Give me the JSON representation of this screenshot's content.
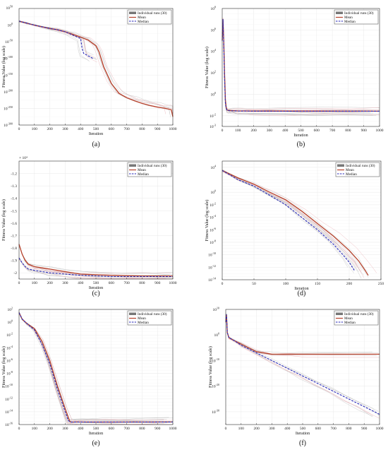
{
  "legend": {
    "runs": "Individual runs (30)",
    "mean": "Mean",
    "median": "Median"
  },
  "colors": {
    "mean": "#b5402a",
    "median": "#2a2ab8",
    "runs": "#b8b8b8",
    "run_accent": "#e8a6ad"
  },
  "chart_data": [
    {
      "id": "a",
      "type": "line",
      "caption": "(a)",
      "xlabel": "Iteration",
      "ylabel": "Fitness Value (log scale)",
      "xlim": [
        0,
        1000
      ],
      "xticks": [
        0,
        100,
        200,
        300,
        400,
        500,
        600,
        700,
        800,
        900,
        1000
      ],
      "yscale": "log",
      "ylim_exp": [
        -300,
        50
      ],
      "yticks_exp": [
        0,
        -50,
        -100,
        -150,
        -200,
        -250,
        -300
      ],
      "top_exp_label": "50",
      "series": [
        {
          "name": "Mean",
          "x": [
            0,
            50,
            100,
            150,
            200,
            250,
            300,
            350,
            400,
            450,
            500,
            520,
            550,
            600,
            650,
            700,
            750,
            800,
            850,
            900,
            950,
            990,
            1000
          ],
          "y_exp": [
            12,
            6,
            0,
            -5,
            -10,
            -14,
            -20,
            -28,
            -36,
            -45,
            -62,
            -80,
            -125,
            -175,
            -205,
            -218,
            -227,
            -235,
            -241,
            -246,
            -250,
            -254,
            -275
          ]
        },
        {
          "name": "Median",
          "x": [
            0,
            50,
            100,
            150,
            200,
            250,
            300,
            350,
            400,
            410,
            420,
            480
          ],
          "y_exp": [
            12,
            6,
            0,
            -5,
            -10,
            -14,
            -20,
            -30,
            -40,
            -70,
            -85,
            -100
          ]
        }
      ]
    },
    {
      "id": "b",
      "type": "line",
      "caption": "(b)",
      "xlabel": "Iteration",
      "ylabel": "Fitness Value (log scale)",
      "xlim": [
        0,
        1000
      ],
      "xticks": [
        0,
        100,
        200,
        300,
        400,
        500,
        600,
        700,
        800,
        900,
        1000
      ],
      "yscale": "log",
      "ylim_exp": [
        -3,
        8
      ],
      "yticks_exp": [
        -3,
        -2,
        0,
        2,
        4,
        6,
        8
      ],
      "series": [
        {
          "name": "Mean",
          "x": [
            0,
            5,
            10,
            15,
            20,
            25,
            30,
            40,
            60,
            100,
            200,
            400,
            600,
            800,
            1000
          ],
          "y_exp": [
            5,
            7,
            5,
            2,
            -0.5,
            -1.2,
            -1.45,
            -1.5,
            -1.52,
            -1.55,
            -1.56,
            -1.57,
            -1.57,
            -1.58,
            -1.58
          ]
        },
        {
          "name": "Median",
          "x": [
            0,
            5,
            10,
            15,
            20,
            25,
            30,
            40,
            60,
            100,
            200,
            400,
            600,
            800,
            1000
          ],
          "y_exp": [
            5,
            7,
            4.5,
            1.5,
            -0.8,
            -1.3,
            -1.48,
            -1.52,
            -1.54,
            -1.56,
            -1.57,
            -1.58,
            -1.58,
            -1.58,
            -1.58
          ]
        }
      ]
    },
    {
      "id": "c",
      "type": "line",
      "caption": "(c)",
      "xlabel": "Iteration",
      "ylabel": "Fitness Value (log scale)",
      "xlim": [
        0,
        1000
      ],
      "xticks": [
        0,
        100,
        200,
        300,
        400,
        500,
        600,
        700,
        800,
        900,
        1000
      ],
      "yscale": "linear",
      "ylim": [
        -2.05,
        -1.1
      ],
      "yticks": [
        -2,
        -1.9,
        -1.8,
        -1.7,
        -1.6,
        -1.5,
        -1.4,
        -1.3,
        -1.2
      ],
      "ytick_labels": [
        "-2",
        "-1.9",
        "-1.8",
        "-1.7",
        "-1.6",
        "-1.5",
        "-1.4",
        "-1.3",
        "-1.2"
      ],
      "multiplier": "× 10⁴",
      "series": [
        {
          "name": "Mean",
          "x": [
            0,
            20,
            40,
            60,
            100,
            150,
            200,
            300,
            400,
            600,
            800,
            1000
          ],
          "y": [
            -1.77,
            -1.85,
            -1.9,
            -1.93,
            -1.95,
            -1.96,
            -1.97,
            -1.99,
            -2.01,
            -2.02,
            -2.025,
            -2.025
          ]
        },
        {
          "name": "Median",
          "x": [
            0,
            20,
            40,
            60,
            100,
            150,
            200,
            300,
            400,
            600,
            800,
            1000
          ],
          "y": [
            -1.88,
            -1.92,
            -1.95,
            -1.97,
            -1.98,
            -1.99,
            -2.0,
            -2.01,
            -2.02,
            -2.03,
            -2.03,
            -2.03
          ]
        }
      ]
    },
    {
      "id": "d",
      "type": "line",
      "caption": "(d)",
      "xlabel": "Iteration",
      "ylabel": "Fitness Value (log scale)",
      "xlim": [
        0,
        250
      ],
      "xticks": [
        0,
        50,
        100,
        150,
        200,
        250
      ],
      "yscale": "log",
      "ylim_exp": [
        -14,
        5
      ],
      "yticks_exp": [
        4,
        0,
        -2,
        -4,
        -6,
        -8,
        -10,
        -12,
        -14
      ],
      "series": [
        {
          "name": "Mean",
          "x": [
            0,
            25,
            50,
            75,
            100,
            125,
            150,
            175,
            200,
            215,
            225,
            230
          ],
          "y_exp": [
            3.5,
            2.3,
            1.3,
            0,
            -1.2,
            -3,
            -5,
            -7,
            -9.3,
            -11,
            -12.5,
            -13.3
          ]
        },
        {
          "name": "Median",
          "x": [
            0,
            25,
            50,
            75,
            100,
            125,
            150,
            175,
            190,
            200,
            208
          ],
          "y_exp": [
            3.5,
            2,
            1,
            -0.5,
            -2,
            -4,
            -6,
            -8.3,
            -10,
            -11.2,
            -12.5
          ]
        }
      ]
    },
    {
      "id": "e",
      "type": "line",
      "caption": "(e)",
      "xlabel": "Iteration",
      "ylabel": "Fitness Value (log scale)",
      "xlim": [
        0,
        1000
      ],
      "xticks": [
        0,
        100,
        200,
        300,
        400,
        500,
        600,
        700,
        800,
        900,
        1000
      ],
      "yscale": "log",
      "ylim_exp": [
        -16,
        2
      ],
      "yticks_exp": [
        2,
        0,
        -2,
        -4,
        -6,
        -8,
        -10,
        -12,
        -14,
        -16
      ],
      "series": [
        {
          "name": "Mean",
          "x": [
            0,
            20,
            50,
            100,
            150,
            200,
            250,
            300,
            330,
            340,
            400,
            600,
            800,
            1000
          ],
          "y_exp": [
            1.5,
            0.5,
            -0.2,
            -1,
            -3,
            -6,
            -10,
            -13.5,
            -15.5,
            -15.6,
            -15.6,
            -15.6,
            -15.6,
            -15.6
          ]
        },
        {
          "name": "Median",
          "x": [
            0,
            20,
            50,
            100,
            150,
            200,
            250,
            300,
            320,
            340,
            400,
            600,
            800,
            1000
          ],
          "y_exp": [
            1.5,
            0.5,
            -0.2,
            -1.2,
            -3.5,
            -6.5,
            -10.5,
            -14,
            -15.4,
            -15.6,
            -15.6,
            -15.6,
            -15.6,
            -15.6
          ]
        }
      ]
    },
    {
      "id": "f",
      "type": "line",
      "caption": "(f)",
      "xlabel": "Iteration",
      "ylabel": "Fitness Value (log scale)",
      "xlim": [
        0,
        1000
      ],
      "xticks": [
        0,
        100,
        200,
        300,
        400,
        500,
        600,
        700,
        800,
        900,
        1000
      ],
      "yscale": "log",
      "ylim_exp": [
        -35,
        10
      ],
      "yticks_exp": [
        10,
        0,
        -10,
        -20,
        -30
      ],
      "series": [
        {
          "name": "Mean",
          "x": [
            0,
            5,
            10,
            20,
            50,
            100,
            200,
            300,
            400,
            500,
            1000
          ],
          "y_exp": [
            5,
            8,
            1,
            -1,
            -2,
            -3.5,
            -6.5,
            -7.5,
            -7.5,
            -7.5,
            -7.5
          ]
        },
        {
          "name": "Median",
          "x": [
            0,
            5,
            10,
            20,
            50,
            100,
            200,
            300,
            400,
            500,
            600,
            700,
            800,
            900,
            1000
          ],
          "y_exp": [
            5,
            8,
            1,
            -1,
            -2,
            -4,
            -7,
            -10,
            -13,
            -16,
            -19,
            -22,
            -25,
            -28,
            -31
          ]
        }
      ]
    }
  ]
}
